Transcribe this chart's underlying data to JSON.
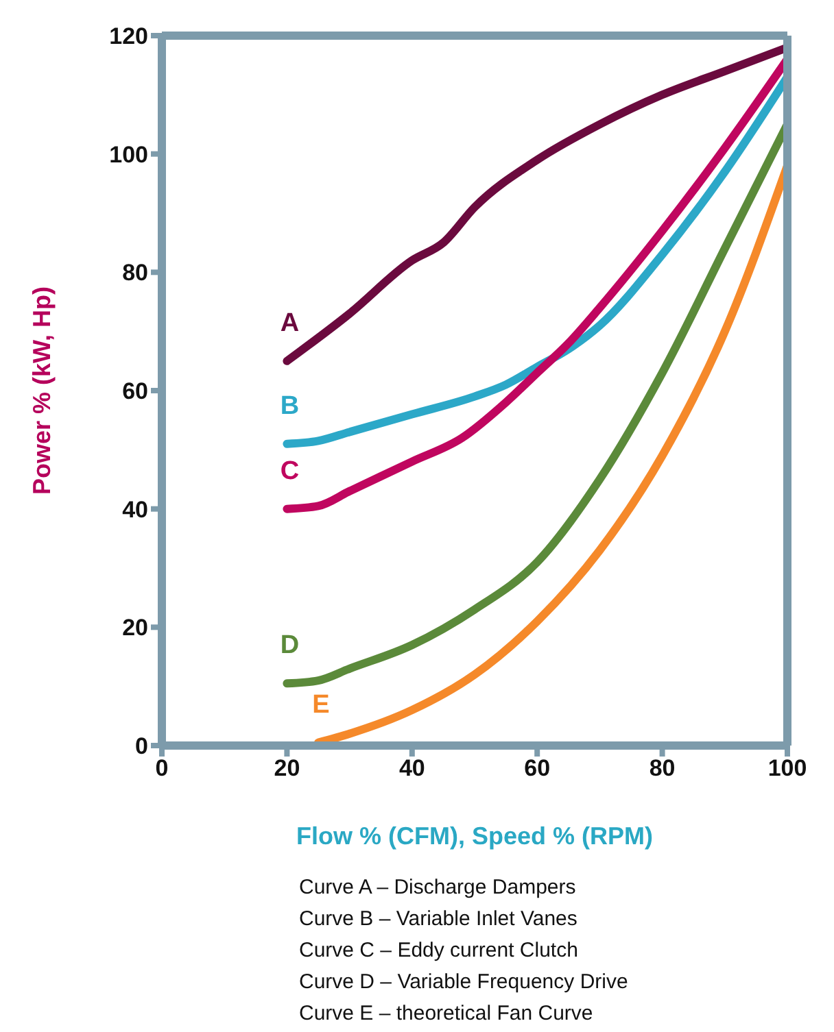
{
  "chart_data": {
    "type": "line",
    "xlabel": "Flow % (CFM), Speed % (RPM)",
    "ylabel": "Power % (kW, Hp)",
    "xlim": [
      0,
      100
    ],
    "ylim": [
      0,
      120
    ],
    "xticks": [
      0,
      20,
      40,
      60,
      80,
      100
    ],
    "yticks": [
      0,
      20,
      40,
      60,
      80,
      100,
      120
    ],
    "marker": "none",
    "line_style": "solid",
    "series": [
      {
        "name": "A",
        "color": "#6b0a3e",
        "x": [
          20,
          30,
          40,
          45,
          50,
          60,
          70,
          80,
          90,
          100
        ],
        "values": [
          65,
          73,
          82,
          85,
          91,
          99,
          105,
          110,
          114,
          118
        ]
      },
      {
        "name": "B",
        "color": "#2ca8c8",
        "x": [
          20,
          25,
          30,
          40,
          50,
          55,
          60,
          65,
          70,
          80,
          90,
          100
        ],
        "values": [
          51,
          51.5,
          53,
          56,
          59,
          61,
          64,
          67,
          71,
          83,
          97,
          113
        ]
      },
      {
        "name": "C",
        "color": "#c0065f",
        "x": [
          20,
          25,
          30,
          40,
          48,
          55,
          60,
          65,
          70,
          80,
          90,
          100
        ],
        "values": [
          40,
          40.5,
          43,
          48,
          52,
          58,
          63,
          68,
          74,
          87,
          101,
          116
        ]
      },
      {
        "name": "D",
        "color": "#5b8a3a",
        "x": [
          20,
          25,
          30,
          40,
          50,
          60,
          70,
          80,
          90,
          100
        ],
        "values": [
          10.5,
          11,
          13,
          17,
          23,
          31,
          45,
          63,
          84,
          105
        ]
      },
      {
        "name": "E",
        "color": "#f5892a",
        "x": [
          25,
          30,
          40,
          50,
          60,
          70,
          80,
          90,
          100
        ],
        "values": [
          0.5,
          2,
          6,
          12,
          21,
          33,
          49,
          70,
          98
        ]
      }
    ],
    "annotations": [
      "Curve A – Discharge Dampers",
      "Curve B – Variable Inlet Vanes",
      "Curve C – Eddy current Clutch",
      "Curve D – Variable Frequency Drive",
      "Curve E – theoretical Fan Curve"
    ]
  }
}
